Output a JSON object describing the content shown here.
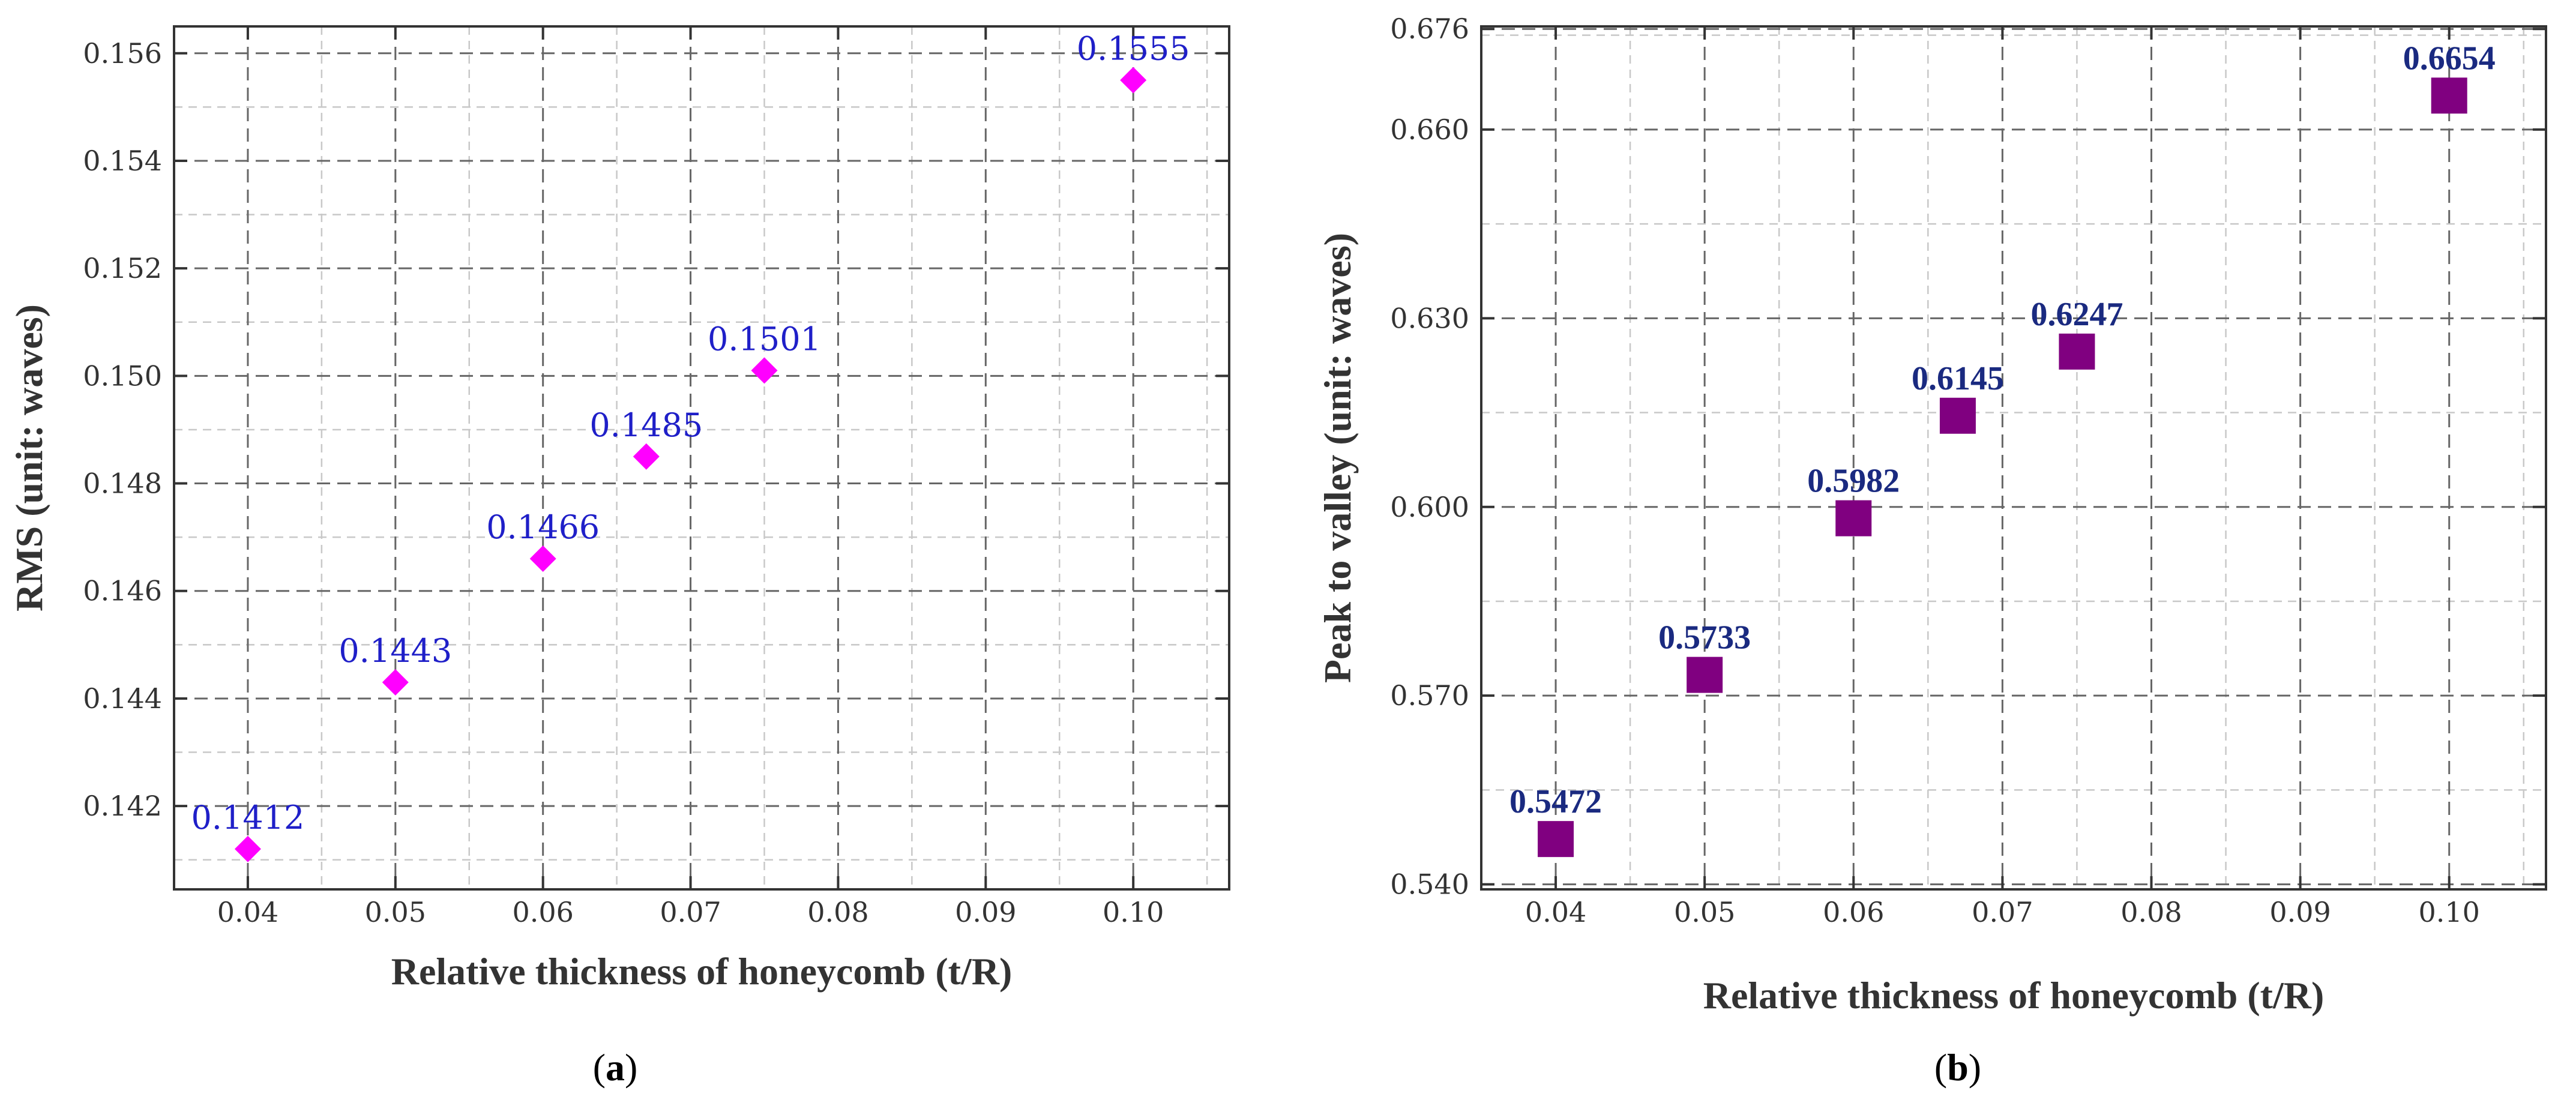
{
  "chart_data": [
    {
      "type": "scatter",
      "panel": "a",
      "panel_label": "a",
      "title": "",
      "xlabel": "Relative thickness of honeycomb (t/R)",
      "ylabel": "RMS (unit: waves)",
      "xlim": [
        0.035,
        0.1065
      ],
      "ylim": [
        0.14045,
        0.1565
      ],
      "xticks": [
        0.04,
        0.05,
        0.06,
        0.07,
        0.08,
        0.09,
        0.1
      ],
      "xtick_labels": [
        "0.04",
        "0.05",
        "0.06",
        "0.07",
        "0.08",
        "0.09",
        "0.10"
      ],
      "yticks": [
        0.142,
        0.144,
        0.146,
        0.148,
        0.15,
        0.152,
        0.154,
        0.156
      ],
      "ytick_labels": [
        "0.142",
        "0.144",
        "0.146",
        "0.148",
        "0.150",
        "0.152",
        "0.154",
        "0.156"
      ],
      "grid": true,
      "marker": "diamond",
      "color": "#ff00ff",
      "label_color": "#1f1fc8",
      "series": [
        {
          "name": "RMS",
          "x": [
            0.04,
            0.05,
            0.06,
            0.067,
            0.075,
            0.1
          ],
          "y": [
            0.1412,
            0.1443,
            0.1466,
            0.1485,
            0.1501,
            0.1555
          ],
          "labels": [
            "0.1412",
            "0.1443",
            "0.1466",
            "0.1485",
            "0.1501",
            "0.1555"
          ]
        }
      ]
    },
    {
      "type": "scatter",
      "panel": "b",
      "panel_label": "b",
      "title": "",
      "xlabel": "Relative thickness of honeycomb (t/R)",
      "ylabel": "Peak to valley (unit: waves)",
      "xlim": [
        0.035,
        0.1065
      ],
      "ylim": [
        0.5392,
        0.6764
      ],
      "xticks": [
        0.04,
        0.05,
        0.06,
        0.07,
        0.08,
        0.09,
        0.1
      ],
      "xtick_labels": [
        "0.04",
        "0.05",
        "0.06",
        "0.07",
        "0.08",
        "0.09",
        "0.10"
      ],
      "yticks": [
        0.54,
        0.57,
        0.6,
        0.63,
        0.66,
        0.676
      ],
      "ytick_labels": [
        "0.540",
        "0.570",
        "0.600",
        "0.630",
        "0.660",
        "0.676"
      ],
      "grid": true,
      "marker": "square",
      "color": "#800080",
      "label_color": "#1a2a80",
      "series": [
        {
          "name": "Peak to valley",
          "x": [
            0.04,
            0.05,
            0.06,
            0.067,
            0.075,
            0.1
          ],
          "y": [
            0.5472,
            0.5733,
            0.5982,
            0.6145,
            0.6247,
            0.6654
          ],
          "labels": [
            "0.5472",
            "0.5733",
            "0.5982",
            "0.6145",
            "0.6247",
            "0.6654"
          ]
        }
      ]
    }
  ]
}
